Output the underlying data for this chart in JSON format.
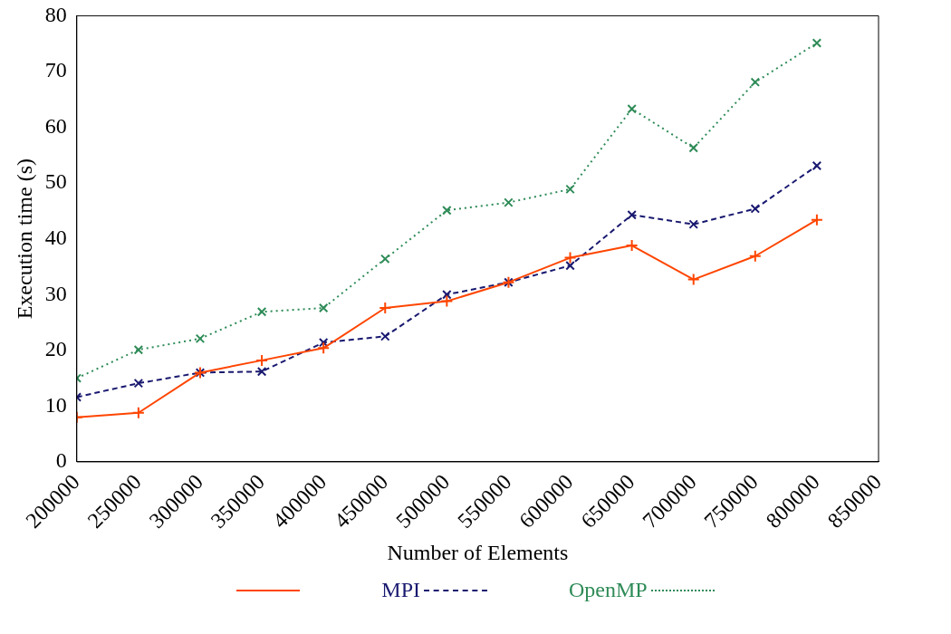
{
  "chart_data": {
    "type": "line",
    "xlabel": "Number of Elements",
    "ylabel": "Execution time (s)",
    "x": [
      200000,
      250000,
      300000,
      350000,
      400000,
      450000,
      500000,
      550000,
      600000,
      650000,
      700000,
      750000,
      800000
    ],
    "xlim": [
      200000,
      850000
    ],
    "xticks": [
      200000,
      250000,
      300000,
      350000,
      400000,
      450000,
      500000,
      550000,
      600000,
      650000,
      700000,
      750000,
      800000,
      850000
    ],
    "ylim": [
      0,
      80
    ],
    "yticks": [
      0,
      10,
      20,
      30,
      40,
      50,
      60,
      70,
      80
    ],
    "grid": false,
    "legend": "bottom",
    "series": [
      {
        "color": "#ff4500",
        "marker": "plus",
        "line_style": "solid",
        "values": [
          8.0,
          8.8,
          16.0,
          18.2,
          20.4,
          27.6,
          28.8,
          32.2,
          36.6,
          38.8,
          32.7,
          36.9,
          43.4
        ]
      },
      {
        "name": "MPI",
        "color": "#191970",
        "marker": "cross",
        "line_style": "dashed",
        "values": [
          11.6,
          14.1,
          16.0,
          16.2,
          21.4,
          22.5,
          30.0,
          32.2,
          35.2,
          44.3,
          42.6,
          45.4,
          53.1
        ]
      },
      {
        "name": "OpenMP",
        "color": "#2e8b57",
        "marker": "cross",
        "line_style": "dotted",
        "values": [
          15.0,
          20.1,
          22.1,
          26.9,
          27.6,
          36.4,
          45.1,
          46.5,
          48.9,
          63.3,
          56.3,
          68.1,
          75.1
        ]
      }
    ]
  }
}
